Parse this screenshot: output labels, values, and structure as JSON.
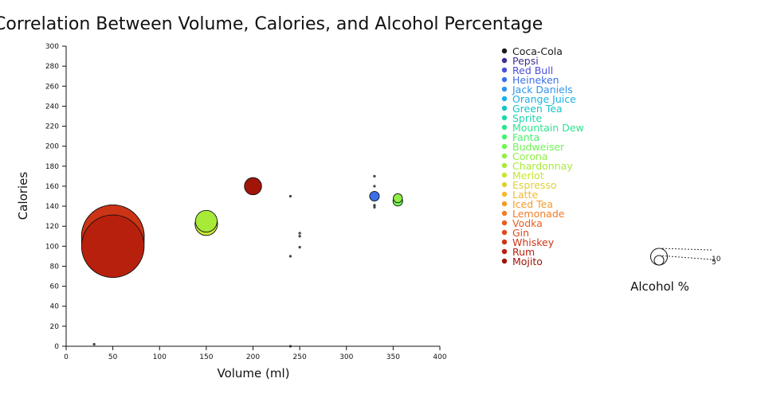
{
  "chart_data": {
    "type": "scatter",
    "title": "Correlation Between Volume, Calories, and Alcohol Percentage",
    "xlabel": "Volume (ml)",
    "ylabel": "Calories",
    "xlim": [
      0,
      400
    ],
    "ylim": [
      0,
      300
    ],
    "xticks": [
      0,
      50,
      100,
      150,
      200,
      250,
      300,
      350,
      400
    ],
    "yticks": [
      0,
      20,
      40,
      60,
      80,
      100,
      120,
      140,
      160,
      180,
      200,
      220,
      240,
      260,
      280,
      300
    ],
    "grid": false,
    "legend_position": "right",
    "size_legend": {
      "title": "Alcohol %",
      "entries": [
        10,
        5
      ]
    },
    "series": [
      {
        "name": "Coca-Cola",
        "color": "#1a1a1a",
        "x": [],
        "y": [],
        "alcohol": []
      },
      {
        "name": "Pepsi",
        "color": "#3b2f8f",
        "x": [],
        "y": [],
        "alcohol": []
      },
      {
        "name": "Red Bull",
        "color": "#4a4fd6",
        "x": [],
        "y": [],
        "alcohol": []
      },
      {
        "name": "Heineken",
        "color": "#3a6fe8",
        "x": [
          330
        ],
        "y": [
          150
        ],
        "alcohol": [
          5
        ]
      },
      {
        "name": "Jack Daniels",
        "color": "#2f95ee",
        "x": [],
        "y": [],
        "alcohol": []
      },
      {
        "name": "Orange Juice",
        "color": "#1ab1e6",
        "x": [],
        "y": [],
        "alcohol": []
      },
      {
        "name": "Green Tea",
        "color": "#17c3c9",
        "x": [],
        "y": [],
        "alcohol": []
      },
      {
        "name": "Sprite",
        "color": "#1fd6ad",
        "x": [],
        "y": [],
        "alcohol": []
      },
      {
        "name": "Mountain Dew",
        "color": "#2fe38f",
        "x": [],
        "y": [],
        "alcohol": []
      },
      {
        "name": "Fanta",
        "color": "#4bef6e",
        "x": [],
        "y": [],
        "alcohol": []
      },
      {
        "name": "Budweiser",
        "color": "#6ef553",
        "x": [
          355
        ],
        "y": [
          145
        ],
        "alcohol": [
          5
        ]
      },
      {
        "name": "Corona",
        "color": "#8ef045",
        "x": [
          355
        ],
        "y": [
          148
        ],
        "alcohol": [
          4.6
        ]
      },
      {
        "name": "Chardonnay",
        "color": "#a8ea38",
        "x": [
          150
        ],
        "y": [
          125
        ],
        "alcohol": [
          13
        ]
      },
      {
        "name": "Merlot",
        "color": "#c7e635",
        "x": [
          150
        ],
        "y": [
          122
        ],
        "alcohol": [
          13.5
        ]
      },
      {
        "name": "Espresso",
        "color": "#e0d038",
        "x": [],
        "y": [],
        "alcohol": []
      },
      {
        "name": "Latte",
        "color": "#f5b830",
        "x": [],
        "y": [],
        "alcohol": []
      },
      {
        "name": "Iced Tea",
        "color": "#f59a2a",
        "x": [],
        "y": [],
        "alcohol": []
      },
      {
        "name": "Lemonade",
        "color": "#f07d26",
        "x": [],
        "y": [],
        "alcohol": []
      },
      {
        "name": "Vodka",
        "color": "#e85e22",
        "x": [
          50
        ],
        "y": [
          110
        ],
        "alcohol": [
          40
        ]
      },
      {
        "name": "Gin",
        "color": "#dd4a1e",
        "x": [
          50
        ],
        "y": [
          105
        ],
        "alcohol": [
          40
        ]
      },
      {
        "name": "Whiskey",
        "color": "#cc3416",
        "x": [
          50
        ],
        "y": [
          110
        ],
        "alcohol": [
          40
        ]
      },
      {
        "name": "Rum",
        "color": "#b8200e",
        "x": [
          50
        ],
        "y": [
          100
        ],
        "alcohol": [
          40
        ]
      },
      {
        "name": "Mojito",
        "color": "#a01508",
        "x": [
          200
        ],
        "y": [
          160
        ],
        "alcohol": [
          10
        ]
      }
    ],
    "zero_alcohol_points": {
      "x": [
        30,
        240,
        240,
        250,
        250,
        250,
        330,
        330,
        330,
        330,
        240
      ],
      "y": [
        2,
        150,
        90,
        113,
        110,
        99,
        170,
        160,
        141,
        139,
        0
      ]
    }
  }
}
